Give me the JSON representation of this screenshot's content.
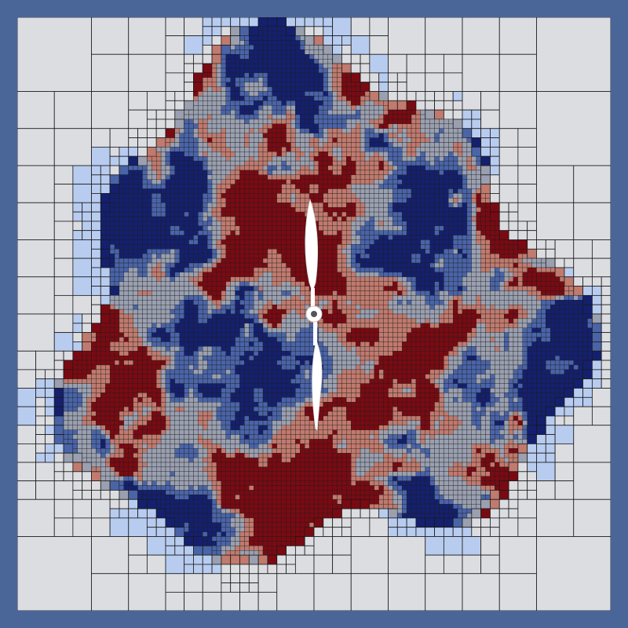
{
  "figure": {
    "description_kind": "adaptive-mesh-refinement vorticity field around a rotor",
    "colors": {
      "border": "#4a6699",
      "background_cells": "#dcdde1",
      "mesh_lines": "#1a1a1a",
      "positive": "#7a0a12",
      "mid_positive": "#c07a6e",
      "neutral": "#9aa0b0",
      "mid_negative": "#4a64a8",
      "negative": "#14206e",
      "light_negative": "#b8ccf0",
      "rotor": "#ffffff"
    },
    "mesh": {
      "coarsest_level": 3,
      "finest_level": 7
    },
    "rotor": {
      "blade_count": 2,
      "orientation": "vertical"
    }
  }
}
